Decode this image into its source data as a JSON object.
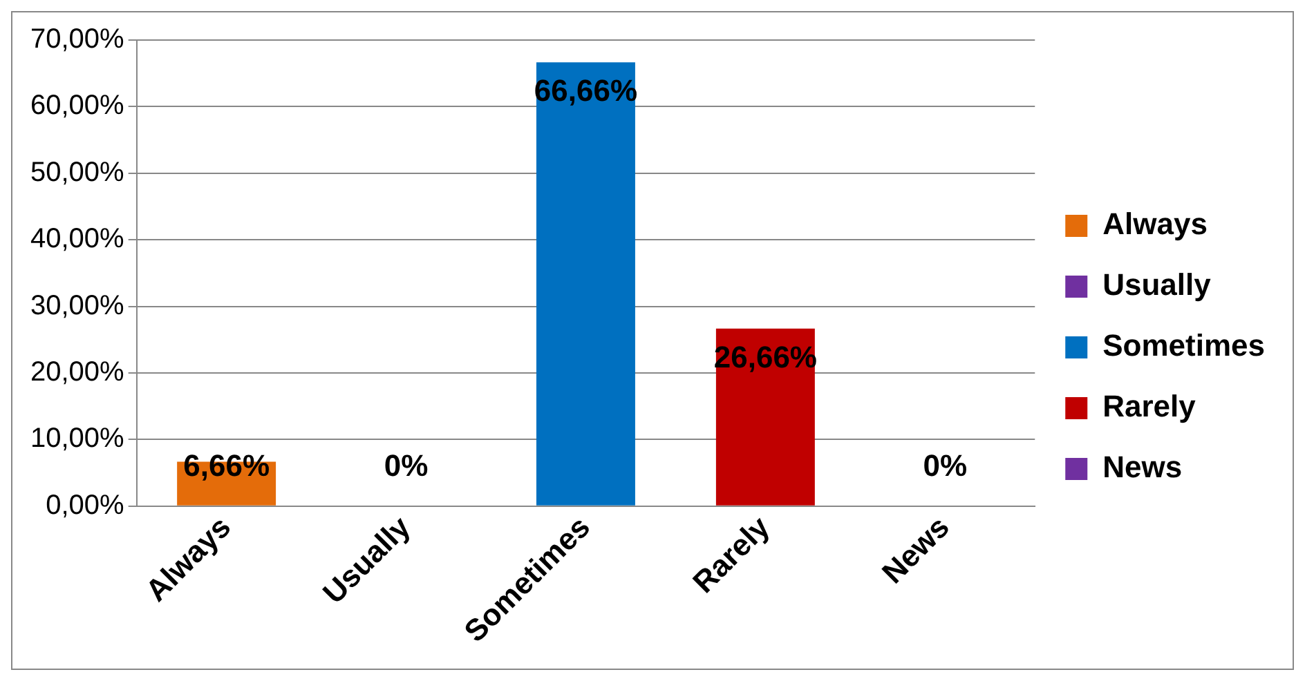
{
  "chart_data": {
    "type": "bar",
    "categories": [
      "Always",
      "Usually",
      "Sometimes",
      "Rarely",
      "News"
    ],
    "series": [
      {
        "name": "Always",
        "color": "#e46c0a",
        "values": [
          6.66,
          null,
          null,
          null,
          null
        ],
        "value_labels": [
          "6,66%",
          null,
          null,
          null,
          null
        ]
      },
      {
        "name": "Usually",
        "color": "#7030a0",
        "values": [
          null,
          0,
          null,
          null,
          null
        ],
        "value_labels": [
          null,
          "0%",
          null,
          null,
          null
        ]
      },
      {
        "name": "Sometimes",
        "color": "#0070c0",
        "values": [
          null,
          null,
          66.66,
          null,
          null
        ],
        "value_labels": [
          null,
          null,
          "66,66%",
          null,
          null
        ]
      },
      {
        "name": "Rarely",
        "color": "#c00000",
        "values": [
          null,
          null,
          null,
          26.66,
          null
        ],
        "value_labels": [
          null,
          null,
          null,
          "26,66%",
          null
        ]
      },
      {
        "name": "News",
        "color": "#7030a0",
        "values": [
          null,
          null,
          null,
          null,
          0
        ],
        "value_labels": [
          null,
          null,
          null,
          null,
          "0%"
        ]
      }
    ],
    "ylim": [
      0,
      70
    ],
    "yticks": [
      {
        "value": 0,
        "label": "0,00%"
      },
      {
        "value": 10,
        "label": "10,00%"
      },
      {
        "value": 20,
        "label": "20,00%"
      },
      {
        "value": 30,
        "label": "30,00%"
      },
      {
        "value": 40,
        "label": "40,00%"
      },
      {
        "value": 50,
        "label": "50,00%"
      },
      {
        "value": 60,
        "label": "60,00%"
      },
      {
        "value": 70,
        "label": "70,00%"
      }
    ],
    "grid": "y",
    "legend": "right"
  }
}
